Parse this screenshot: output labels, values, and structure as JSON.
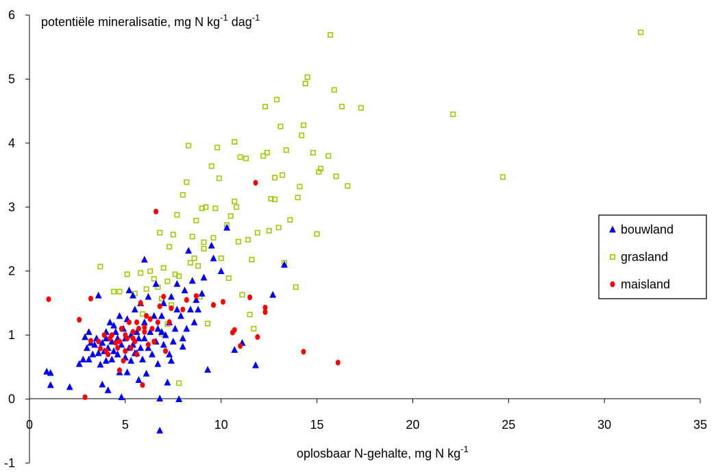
{
  "chart_data": {
    "type": "scatter",
    "ylabel": {
      "base": "potentiële mineralisatie, mg N kg",
      "sup1": "-1",
      "mid": " dag",
      "sup2": "-1"
    },
    "xlabel": {
      "base": "oplosbaar N-gehalte, mg N kg",
      "sup": "-1"
    },
    "xlim": [
      0,
      35
    ],
    "ylim": [
      -1,
      6
    ],
    "x_ticks": [
      "0",
      "5",
      "10",
      "15",
      "20",
      "25",
      "30",
      "35"
    ],
    "y_ticks": [
      "-1",
      "0",
      "1",
      "2",
      "3",
      "4",
      "5",
      "6"
    ],
    "grid": false,
    "legend_position": "right",
    "series": [
      {
        "name": "bouwland",
        "marker": "triangle",
        "color": "#0000ff",
        "points": [
          [
            0.9,
            0.43
          ],
          [
            1.1,
            0.41
          ],
          [
            1.1,
            0.22
          ],
          [
            2.1,
            0.19
          ],
          [
            2.6,
            0.55
          ],
          [
            2.8,
            0.62
          ],
          [
            2.9,
            0.97
          ],
          [
            3.0,
            0.8
          ],
          [
            3.1,
            1.05
          ],
          [
            3.1,
            0.62
          ],
          [
            3.2,
            0.88
          ],
          [
            3.3,
            0.7
          ],
          [
            3.4,
            0.85
          ],
          [
            3.5,
            0.95
          ],
          [
            3.6,
            0.72
          ],
          [
            3.6,
            1.62
          ],
          [
            3.7,
            0.54
          ],
          [
            3.8,
            0.23
          ],
          [
            3.8,
            0.88
          ],
          [
            3.9,
            0.75
          ],
          [
            4.0,
            0.95
          ],
          [
            4.0,
            1.05
          ],
          [
            4.1,
            0.14
          ],
          [
            4.1,
            0.8
          ],
          [
            4.2,
            1.2
          ],
          [
            4.3,
            0.9
          ],
          [
            4.3,
            0.62
          ],
          [
            4.4,
            0.75
          ],
          [
            4.5,
            1.05
          ],
          [
            4.6,
            0.95
          ],
          [
            4.6,
            0.7
          ],
          [
            4.7,
            1.3
          ],
          [
            4.7,
            0.42
          ],
          [
            4.8,
            0.85
          ],
          [
            4.8,
            0.03
          ],
          [
            4.9,
            1.1
          ],
          [
            5.0,
            0.95
          ],
          [
            5.0,
            0.65
          ],
          [
            5.1,
            1.25
          ],
          [
            5.1,
            0.42
          ],
          [
            5.2,
            0.8
          ],
          [
            5.2,
            1.7
          ],
          [
            5.3,
            1.0
          ],
          [
            5.3,
            0.6
          ],
          [
            5.4,
            0.85
          ],
          [
            5.5,
            1.4
          ],
          [
            5.5,
            0.72
          ],
          [
            5.6,
            1.05
          ],
          [
            5.7,
            0.3
          ],
          [
            5.7,
            0.95
          ],
          [
            5.8,
            1.5
          ],
          [
            5.8,
            0.8
          ],
          [
            5.9,
            0.62
          ],
          [
            6.0,
            1.2
          ],
          [
            6.0,
            2.18
          ],
          [
            6.0,
            0.95
          ],
          [
            6.1,
            0.4
          ],
          [
            6.2,
            0.8
          ],
          [
            6.2,
            1.6
          ],
          [
            6.3,
            1.05
          ],
          [
            6.4,
            0.7
          ],
          [
            6.5,
            1.3
          ],
          [
            6.6,
            1.8
          ],
          [
            6.6,
            0.9
          ],
          [
            6.7,
            1.1
          ],
          [
            6.7,
            0.55
          ],
          [
            6.8,
            0.01
          ],
          [
            6.8,
            -0.49
          ],
          [
            6.9,
            1.3
          ],
          [
            7.0,
            0.85
          ],
          [
            7.0,
            1.5
          ],
          [
            7.1,
            1.0
          ],
          [
            7.2,
            0.26
          ],
          [
            7.3,
            1.2
          ],
          [
            7.3,
            0.7
          ],
          [
            7.4,
            1.6
          ],
          [
            7.5,
            0.9
          ],
          [
            7.6,
            1.1
          ],
          [
            7.7,
            1.4
          ],
          [
            7.7,
            1.8
          ],
          [
            7.8,
            0.0
          ],
          [
            7.9,
            1.3
          ],
          [
            8.0,
            0.82
          ],
          [
            8.1,
            1.7
          ],
          [
            8.2,
            1.1
          ],
          [
            8.3,
            2.32
          ],
          [
            8.4,
            1.4
          ],
          [
            8.5,
            1.85
          ],
          [
            8.6,
            1.2
          ],
          [
            8.7,
            1.55
          ],
          [
            8.8,
            1.4
          ],
          [
            9.0,
            1.65
          ],
          [
            9.1,
            1.9
          ],
          [
            9.3,
            0.46
          ],
          [
            9.5,
            2.4
          ],
          [
            9.6,
            2.2
          ],
          [
            10.0,
            2.0
          ],
          [
            10.3,
            2.68
          ],
          [
            10.7,
            0.77
          ],
          [
            11.1,
            0.88
          ],
          [
            11.8,
            0.53
          ],
          [
            12.7,
            1.63
          ],
          [
            13.3,
            2.1
          ],
          [
            4.0,
            0.6
          ],
          [
            4.4,
            1.15
          ],
          [
            5.6,
            0.72
          ],
          [
            6.9,
            1.05
          ],
          [
            7.4,
            0.6
          ],
          [
            8.0,
            0.95
          ],
          [
            5.4,
            1.62
          ]
        ]
      },
      {
        "name": "grasland",
        "marker": "square",
        "color": "#99cc00",
        "points": [
          [
            3.7,
            2.07
          ],
          [
            4.4,
            1.68
          ],
          [
            4.7,
            1.68
          ],
          [
            5.1,
            1.95
          ],
          [
            5.5,
            1.65
          ],
          [
            5.8,
            1.97
          ],
          [
            6.1,
            1.72
          ],
          [
            6.3,
            2.0
          ],
          [
            6.5,
            1.88
          ],
          [
            6.7,
            1.75
          ],
          [
            6.8,
            2.6
          ],
          [
            6.9,
            1.57
          ],
          [
            7.0,
            2.05
          ],
          [
            7.2,
            1.84
          ],
          [
            7.3,
            2.38
          ],
          [
            7.4,
            1.47
          ],
          [
            7.5,
            2.57
          ],
          [
            7.6,
            1.95
          ],
          [
            7.7,
            2.88
          ],
          [
            7.8,
            1.92
          ],
          [
            7.8,
            0.25
          ],
          [
            8.0,
            3.19
          ],
          [
            8.2,
            3.39
          ],
          [
            8.3,
            3.96
          ],
          [
            8.4,
            2.13
          ],
          [
            8.5,
            2.54
          ],
          [
            8.6,
            2.2
          ],
          [
            8.7,
            2.79
          ],
          [
            8.8,
            2.08
          ],
          [
            9.0,
            2.98
          ],
          [
            9.1,
            2.35
          ],
          [
            9.2,
            3.0
          ],
          [
            9.3,
            1.18
          ],
          [
            9.5,
            3.64
          ],
          [
            9.6,
            2.52
          ],
          [
            9.7,
            2.98
          ],
          [
            9.8,
            3.93
          ],
          [
            9.9,
            3.45
          ],
          [
            10.0,
            2.2
          ],
          [
            10.3,
            2.72
          ],
          [
            10.5,
            2.86
          ],
          [
            10.7,
            4.02
          ],
          [
            10.8,
            3.0
          ],
          [
            10.9,
            2.46
          ],
          [
            11.0,
            3.78
          ],
          [
            11.1,
            1.63
          ],
          [
            11.3,
            3.76
          ],
          [
            11.4,
            2.49
          ],
          [
            11.6,
            2.18
          ],
          [
            11.7,
            1.1
          ],
          [
            11.9,
            2.6
          ],
          [
            12.2,
            3.8
          ],
          [
            12.3,
            4.57
          ],
          [
            12.4,
            3.85
          ],
          [
            12.5,
            2.63
          ],
          [
            12.6,
            3.13
          ],
          [
            12.8,
            3.12
          ],
          [
            12.9,
            4.68
          ],
          [
            13.0,
            2.68
          ],
          [
            13.1,
            4.26
          ],
          [
            13.2,
            3.5
          ],
          [
            13.4,
            3.89
          ],
          [
            13.6,
            2.8
          ],
          [
            13.9,
            1.75
          ],
          [
            14.0,
            3.15
          ],
          [
            14.1,
            3.32
          ],
          [
            14.2,
            4.12
          ],
          [
            14.3,
            4.28
          ],
          [
            14.4,
            4.93
          ],
          [
            14.5,
            5.03
          ],
          [
            14.8,
            3.85
          ],
          [
            15.0,
            2.58
          ],
          [
            15.1,
            3.55
          ],
          [
            15.2,
            3.6
          ],
          [
            15.6,
            3.8
          ],
          [
            15.7,
            5.69
          ],
          [
            15.9,
            4.83
          ],
          [
            16.0,
            3.48
          ],
          [
            16.3,
            4.57
          ],
          [
            16.6,
            3.33
          ],
          [
            17.3,
            4.55
          ],
          [
            22.1,
            4.45
          ],
          [
            24.7,
            3.47
          ],
          [
            31.9,
            5.73
          ],
          [
            5.9,
            1.33
          ],
          [
            6.9,
            1.02
          ],
          [
            7.2,
            1.17
          ],
          [
            8.9,
            1.6
          ],
          [
            10.4,
            1.89
          ],
          [
            11.5,
            1.32
          ],
          [
            12.8,
            3.46
          ],
          [
            13.3,
            2.13
          ],
          [
            9.1,
            2.45
          ],
          [
            10.7,
            3.09
          ]
        ]
      },
      {
        "name": "maisland",
        "marker": "circle",
        "color": "#ff0000",
        "points": [
          [
            1.0,
            1.56
          ],
          [
            2.6,
            1.24
          ],
          [
            2.9,
            0.03
          ],
          [
            3.2,
            0.91
          ],
          [
            3.2,
            1.57
          ],
          [
            3.6,
            0.9
          ],
          [
            3.7,
            0.79
          ],
          [
            3.9,
            1.0
          ],
          [
            4.0,
            0.75
          ],
          [
            4.1,
            0.7
          ],
          [
            4.2,
            0.95
          ],
          [
            4.3,
            1.0
          ],
          [
            4.5,
            0.88
          ],
          [
            4.6,
            0.8
          ],
          [
            4.7,
            0.9
          ],
          [
            4.7,
            0.45
          ],
          [
            4.8,
            1.1
          ],
          [
            4.9,
            0.6
          ],
          [
            5.0,
            1.0
          ],
          [
            5.0,
            0.75
          ],
          [
            5.1,
            0.95
          ],
          [
            5.2,
            1.2
          ],
          [
            5.3,
            0.8
          ],
          [
            5.4,
            1.05
          ],
          [
            5.5,
            0.9
          ],
          [
            5.6,
            1.2
          ],
          [
            5.6,
            0.7
          ],
          [
            5.7,
            1.1
          ],
          [
            5.8,
            1.5
          ],
          [
            5.9,
            0.22
          ],
          [
            6.0,
            1.05
          ],
          [
            6.1,
            1.3
          ],
          [
            6.2,
            0.85
          ],
          [
            6.3,
            1.25
          ],
          [
            6.4,
            1.1
          ],
          [
            6.5,
            0.9
          ],
          [
            6.6,
            2.93
          ],
          [
            6.7,
            1.2
          ],
          [
            6.8,
            1.45
          ],
          [
            7.0,
            1.6
          ],
          [
            7.1,
            0.75
          ],
          [
            7.3,
            1.2
          ],
          [
            7.4,
            1.42
          ],
          [
            8.0,
            1.4
          ],
          [
            8.2,
            1.55
          ],
          [
            8.7,
            1.61
          ],
          [
            9.6,
            1.47
          ],
          [
            10.1,
            1.52
          ],
          [
            10.6,
            1.04
          ],
          [
            10.7,
            1.08
          ],
          [
            11.0,
            0.83
          ],
          [
            11.5,
            1.59
          ],
          [
            11.8,
            3.38
          ],
          [
            11.9,
            0.97
          ],
          [
            12.3,
            1.36
          ],
          [
            12.3,
            1.43
          ],
          [
            14.3,
            0.74
          ],
          [
            16.1,
            0.57
          ],
          [
            6.0,
            1.12
          ],
          [
            5.4,
            0.95
          ]
        ]
      }
    ]
  }
}
